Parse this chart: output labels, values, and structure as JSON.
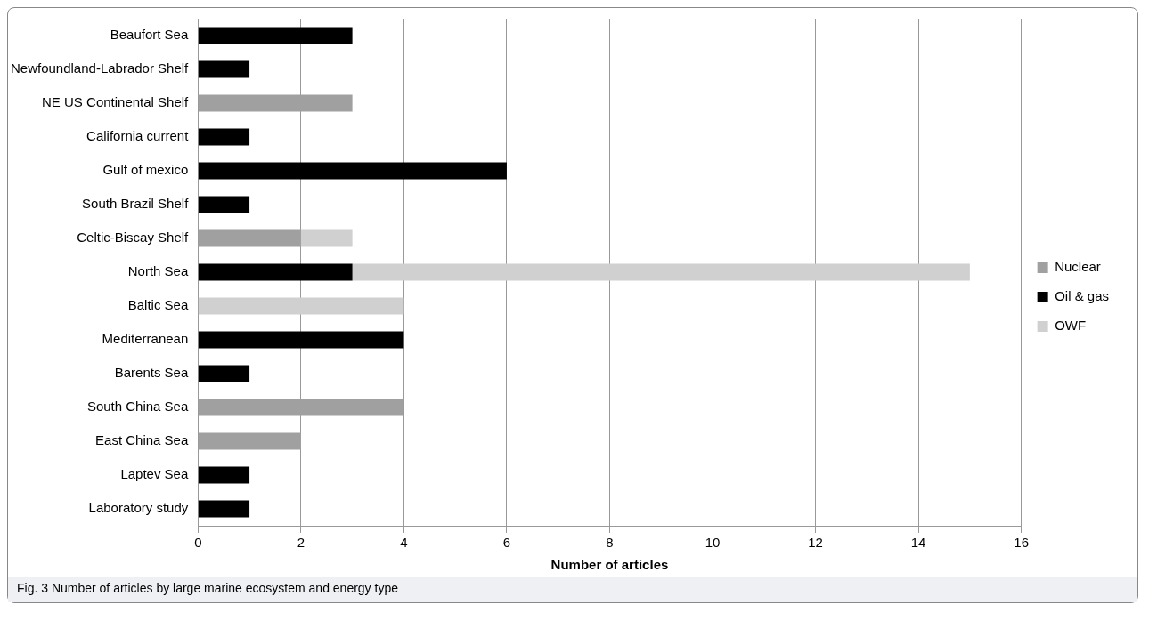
{
  "chart_data": {
    "type": "bar",
    "orientation": "horizontal",
    "stacked": true,
    "categories": [
      "Beaufort Sea",
      "Newfoundland-Labrador Shelf",
      "NE US Continental Shelf",
      "California current",
      "Gulf of mexico",
      "South Brazil Shelf",
      "Celtic-Biscay Shelf",
      "North Sea",
      "Baltic Sea",
      "Mediterranean",
      "Barents Sea",
      "South China Sea",
      "East China Sea",
      "Laptev Sea",
      "Laboratory study"
    ],
    "series": [
      {
        "name": "Nuclear",
        "color": "#a0a0a0",
        "values": [
          null,
          null,
          3,
          null,
          null,
          null,
          2,
          null,
          null,
          null,
          null,
          4,
          2,
          null,
          null
        ]
      },
      {
        "name": "Oil & gas",
        "color": "#000000",
        "values": [
          3,
          1,
          null,
          1,
          6,
          1,
          null,
          3,
          null,
          4,
          1,
          null,
          null,
          1,
          1
        ]
      },
      {
        "name": "OWF",
        "color": "#d0d0d0",
        "values": [
          null,
          null,
          null,
          null,
          null,
          null,
          1,
          12,
          4,
          null,
          null,
          null,
          null,
          null,
          null
        ]
      }
    ],
    "xlim": [
      0,
      16
    ],
    "xticks": [
      0,
      2,
      4,
      6,
      8,
      10,
      12,
      14,
      16
    ],
    "xlabel": "Number of articles",
    "grid": "x",
    "legend": "right",
    "annotations": [
      "Fig. 3 Number of articles by large marine ecosystem and energy type"
    ]
  }
}
